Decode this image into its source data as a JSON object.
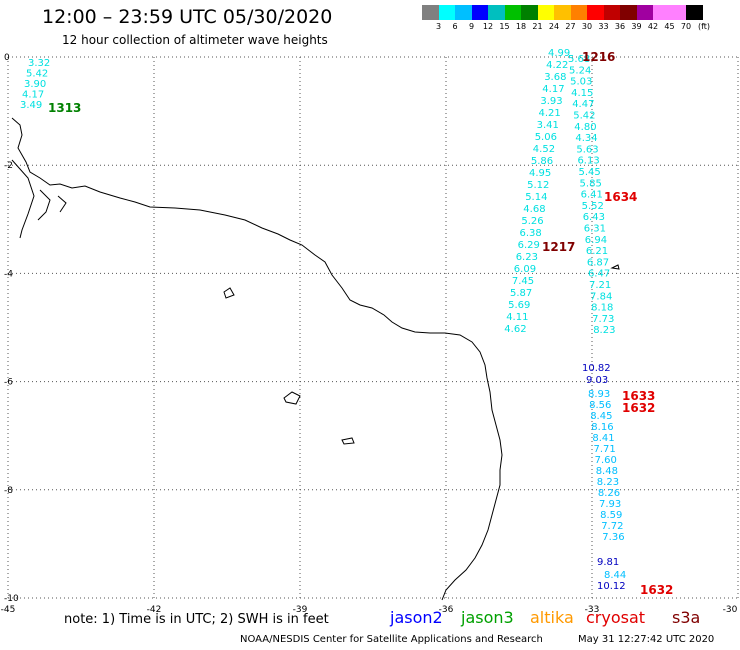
{
  "title": "12:00 – 23:59 UTC 05/30/2020",
  "subtitle": "12 hour collection of altimeter wave heights",
  "legend": {
    "unit": "(ft)",
    "colors": [
      "#808080",
      "#00ffff",
      "#00bfff",
      "#0000ff",
      "#00bfbf",
      "#00c000",
      "#008000",
      "#ffff00",
      "#ffc000",
      "#ff8000",
      "#ff0000",
      "#c00000",
      "#800000",
      "#a000a0",
      "#ff80ff",
      "#ff80ff",
      "#000000"
    ],
    "ticks": [
      "3",
      "6",
      "9",
      "12",
      "15",
      "18",
      "21",
      "24",
      "27",
      "30",
      "33",
      "36",
      "39",
      "42",
      "45",
      "70"
    ]
  },
  "axes": {
    "x_ticks": [
      "-45",
      "-42",
      "-39",
      "-36",
      "-33",
      "-30"
    ],
    "y_ticks": [
      "0",
      "-2",
      "-4",
      "-6",
      "-8",
      "-10"
    ]
  },
  "tracks": [
    {
      "color": "#00e0e0",
      "values": [
        "3.32",
        "5.42",
        "3.90",
        "4.17",
        "3.49"
      ]
    },
    {
      "color": "#00e0e0",
      "values": [
        "4.99",
        "4.22",
        "3.68",
        "4.17",
        "3.93",
        "4.21",
        "3.41",
        "5.06",
        "4.52",
        "5.86",
        "4.95",
        "5.12",
        "5.14",
        "4.68",
        "5.26",
        "6.38",
        "6.29",
        "6.23",
        "6.09",
        "7.45",
        "5.87",
        "5.69",
        "4.11",
        "4.62"
      ]
    },
    {
      "color": "#00e0e0",
      "values": [
        "5.68",
        "5.24",
        "5.03",
        "4.15",
        "4.47",
        "5.42",
        "4.80",
        "4.34",
        "5.63",
        "6.13",
        "5.45",
        "5.85",
        "6.41",
        "5.52",
        "6.43",
        "6.31",
        "6.94",
        "6.21",
        "6.87",
        "6.47",
        "7.21",
        "7.84",
        "8.18",
        "7.73",
        "8.23"
      ]
    },
    {
      "color": "#00bfff",
      "values": [
        "8.93",
        "8.56",
        "8.45",
        "8.16",
        "8.41",
        "7.71",
        "7.60",
        "8.48",
        "8.23",
        "8.26",
        "7.93",
        "8.59",
        "7.72",
        "7.36"
      ]
    },
    {
      "color": "#0000c0",
      "values": [
        "10.82",
        "9.03",
        "9.81",
        "10.12"
      ]
    },
    {
      "color": "#00bfff",
      "values": [
        "8.44"
      ]
    }
  ],
  "time_labels": [
    {
      "text": "1313",
      "color": "#008000"
    },
    {
      "text": "1216",
      "color": "#800000"
    },
    {
      "text": "1634",
      "color": "#e00000"
    },
    {
      "text": "1217",
      "color": "#800000"
    },
    {
      "text": "1633",
      "color": "#e00000"
    },
    {
      "text": "1632",
      "color": "#e00000"
    },
    {
      "text": "1632",
      "color": "#e00000"
    }
  ],
  "note": "note: 1) Time is in UTC; 2) SWH is in feet",
  "satellites": [
    {
      "name": "jason2",
      "color": "#0000ff"
    },
    {
      "name": "jason3",
      "color": "#00a000"
    },
    {
      "name": "altika",
      "color": "#ff9900"
    },
    {
      "name": "cryosat",
      "color": "#e00000"
    },
    {
      "name": "s3a",
      "color": "#800000"
    }
  ],
  "footer_left": "NOAA/NESDIS Center for Satellite Applications and Research",
  "footer_right": "May 31 12:27:42 UTC 2020"
}
